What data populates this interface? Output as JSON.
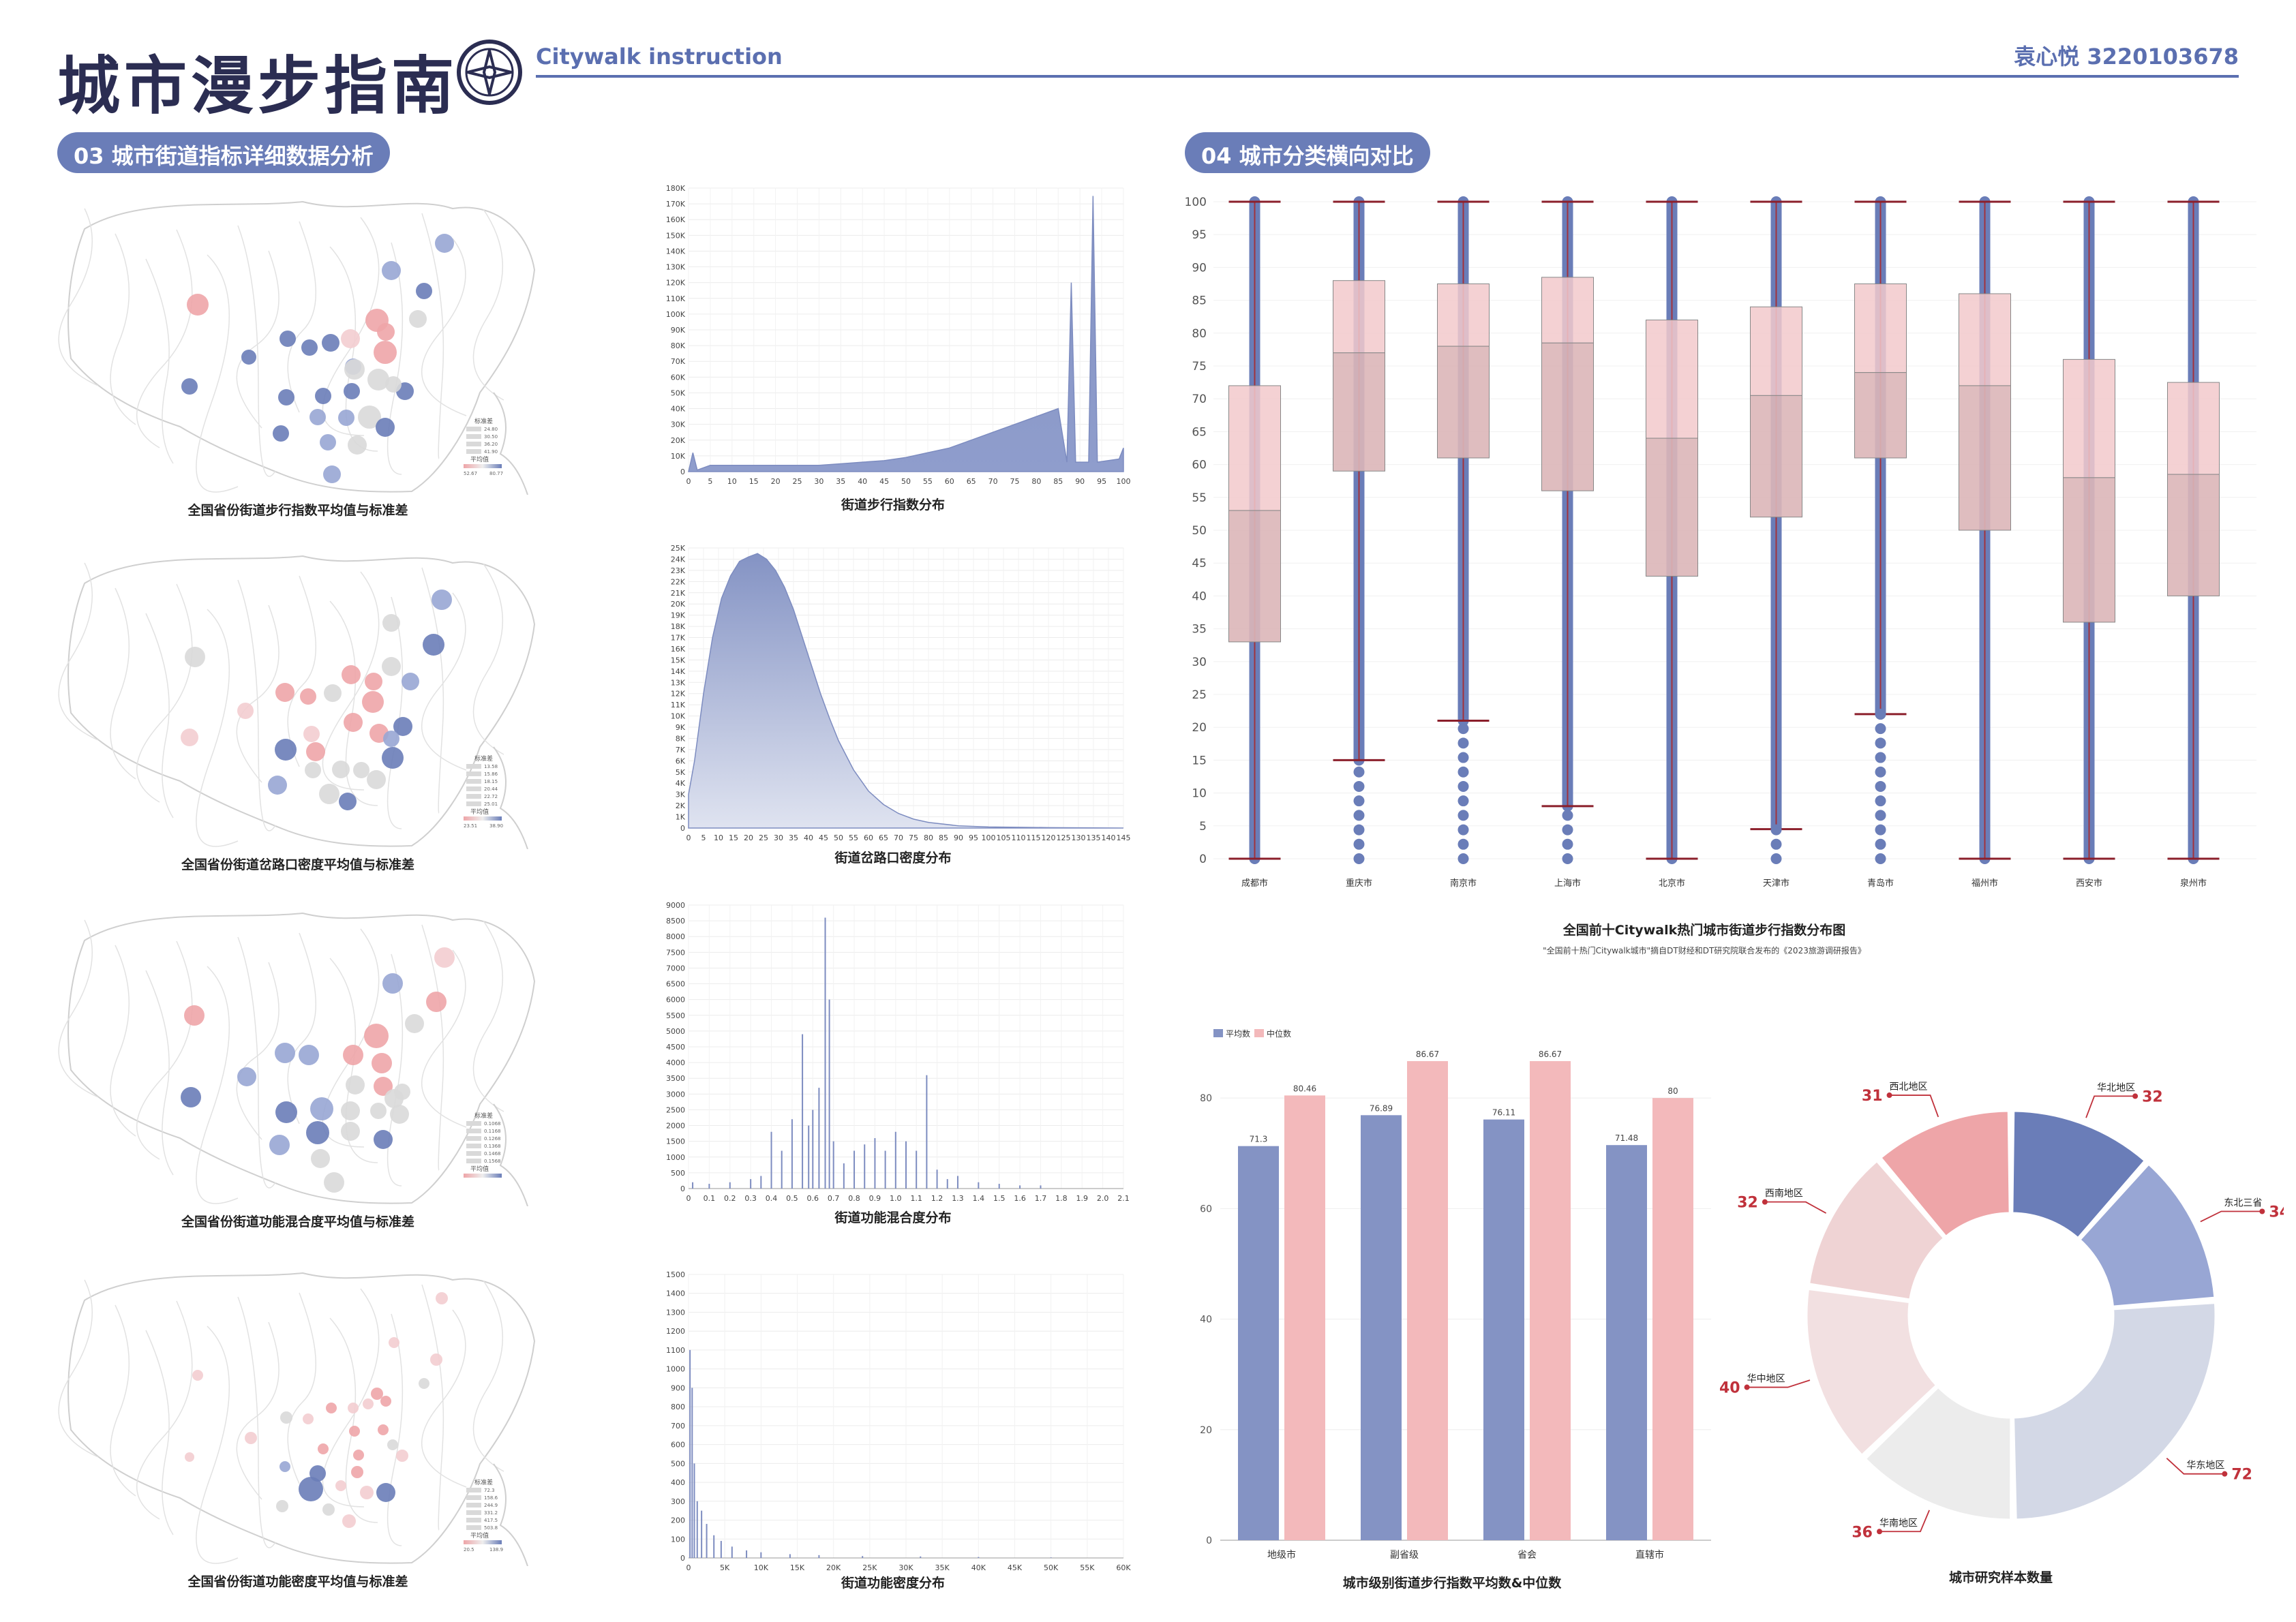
{
  "header": {
    "title": "城市漫步指南",
    "subtitle": "Citywalk instruction",
    "author": "袁心悦 3220103678"
  },
  "colors": {
    "accent": "#5b6fb0",
    "blue": "#6a7db8",
    "pink": "#eea5a8",
    "grey": "#d9d9d9"
  },
  "sections": {
    "s03": "03 城市街道指标详细数据分析",
    "s04": "04 城市分类横向对比"
  },
  "maps": [
    {
      "caption": "全国省份街道步行指数平均值与标准差",
      "legend_std": "标准差",
      "legend_std_vals": [
        "24.80",
        "30.50",
        "36.20",
        "41.90"
      ],
      "legend_mean": "平均值",
      "legend_min": "52.67",
      "legend_max": "80.77"
    },
    {
      "caption": "全国省份街道岔路口密度平均值与标准差",
      "legend_std": "标准差",
      "legend_std_vals": [
        "13.58",
        "15.86",
        "18.15",
        "20.44",
        "22.72",
        "25.01"
      ],
      "legend_mean": "平均值",
      "legend_min": "23.51",
      "legend_max": "38.90"
    },
    {
      "caption": "全国省份街道功能混合度平均值与标准差",
      "legend_std": "标准差",
      "legend_std_vals": [
        "0.1068",
        "0.1168",
        "0.1268",
        "0.1368",
        "0.1468",
        "0.1568"
      ],
      "legend_mean": "平均值",
      "legend_min": "",
      "legend_max": ""
    },
    {
      "caption": "全国省份街道功能密度平均值与标准差",
      "legend_std": "标准差",
      "legend_std_vals": [
        "72.3",
        "158.6",
        "244.9",
        "331.2",
        "417.5",
        "503.8"
      ],
      "legend_mean": "平均值",
      "legend_min": "20.5",
      "legend_max": "138.9"
    }
  ],
  "distributions": {
    "walk": {
      "caption": "街道步行指数分布",
      "type": "area",
      "ylabels": [
        "0",
        "10K",
        "20K",
        "30K",
        "40K",
        "50K",
        "60K",
        "70K",
        "80K",
        "90K",
        "100K",
        "110K",
        "120K",
        "130K",
        "140K",
        "150K",
        "160K",
        "170K",
        "180K"
      ],
      "xlabels": [
        "0",
        "5",
        "10",
        "15",
        "20",
        "25",
        "30",
        "35",
        "40",
        "45",
        "50",
        "55",
        "60",
        "65",
        "70",
        "75",
        "80",
        "85",
        "90",
        "95",
        "100"
      ],
      "xmax": 100,
      "ymax": 180000,
      "points": [
        [
          0,
          0
        ],
        [
          1,
          12000
        ],
        [
          2,
          1000
        ],
        [
          5,
          4000
        ],
        [
          10,
          4000
        ],
        [
          15,
          4000
        ],
        [
          20,
          4000
        ],
        [
          25,
          4000
        ],
        [
          30,
          4000
        ],
        [
          35,
          5000
        ],
        [
          40,
          6000
        ],
        [
          45,
          7000
        ],
        [
          50,
          9000
        ],
        [
          55,
          12000
        ],
        [
          60,
          15000
        ],
        [
          65,
          20000
        ],
        [
          70,
          25000
        ],
        [
          75,
          30000
        ],
        [
          80,
          35000
        ],
        [
          85,
          40000
        ],
        [
          87,
          6000
        ],
        [
          88,
          120000
        ],
        [
          89,
          6000
        ],
        [
          92,
          6000
        ],
        [
          93,
          175000
        ],
        [
          94,
          6000
        ],
        [
          99,
          8000
        ],
        [
          100,
          15000
        ]
      ]
    },
    "cross": {
      "caption": "街道岔路口密度分布",
      "type": "area",
      "ylabels": [
        "0",
        "1K",
        "2K",
        "3K",
        "4K",
        "5K",
        "6K",
        "7K",
        "8K",
        "9K",
        "10K",
        "11K",
        "12K",
        "13K",
        "14K",
        "15K",
        "16K",
        "17K",
        "18K",
        "19K",
        "20K",
        "21K",
        "22K",
        "23K",
        "24K",
        "25K"
      ],
      "xlabels": [
        "0",
        "5",
        "10",
        "15",
        "20",
        "25",
        "30",
        "35",
        "40",
        "45",
        "50",
        "55",
        "60",
        "65",
        "70",
        "75",
        "80",
        "85",
        "90",
        "95",
        "100",
        "105",
        "110",
        "115",
        "120",
        "125",
        "130",
        "135",
        "140",
        "145"
      ],
      "xmax": 145,
      "ymax": 25000,
      "points": [
        [
          0,
          3000
        ],
        [
          2,
          6000
        ],
        [
          5,
          12000
        ],
        [
          8,
          17000
        ],
        [
          11,
          20500
        ],
        [
          14,
          22500
        ],
        [
          17,
          23800
        ],
        [
          20,
          24200
        ],
        [
          23,
          24500
        ],
        [
          26,
          24000
        ],
        [
          29,
          23000
        ],
        [
          32,
          21500
        ],
        [
          35,
          19500
        ],
        [
          38,
          17000
        ],
        [
          41,
          14500
        ],
        [
          44,
          12000
        ],
        [
          47,
          9800
        ],
        [
          50,
          7800
        ],
        [
          55,
          5200
        ],
        [
          60,
          3300
        ],
        [
          65,
          2100
        ],
        [
          70,
          1300
        ],
        [
          75,
          800
        ],
        [
          80,
          500
        ],
        [
          90,
          200
        ],
        [
          100,
          100
        ],
        [
          120,
          40
        ],
        [
          145,
          0
        ]
      ]
    },
    "mix": {
      "caption": "街道功能混合度分布",
      "type": "spikes",
      "ylabels": [
        "0",
        "500",
        "1000",
        "1500",
        "2000",
        "2500",
        "3000",
        "3500",
        "4000",
        "4500",
        "5000",
        "5500",
        "6000",
        "6500",
        "7000",
        "7500",
        "8000",
        "8500",
        "9000"
      ],
      "xlabels": [
        "0",
        "0.1",
        "0.2",
        "0.3",
        "0.4",
        "0.5",
        "0.6",
        "0.7",
        "0.8",
        "0.9",
        "1.0",
        "1.1",
        "1.2",
        "1.3",
        "1.4",
        "1.5",
        "1.6",
        "1.7",
        "1.8",
        "1.9",
        "2.0",
        "2.1"
      ],
      "xmax": 2.1,
      "ymax": 9000,
      "points": [
        [
          0.02,
          200
        ],
        [
          0.1,
          150
        ],
        [
          0.2,
          200
        ],
        [
          0.3,
          300
        ],
        [
          0.35,
          400
        ],
        [
          0.4,
          1800
        ],
        [
          0.45,
          1200
        ],
        [
          0.5,
          2200
        ],
        [
          0.55,
          4900
        ],
        [
          0.58,
          2000
        ],
        [
          0.6,
          2500
        ],
        [
          0.63,
          3200
        ],
        [
          0.66,
          8600
        ],
        [
          0.68,
          6000
        ],
        [
          0.7,
          1500
        ],
        [
          0.75,
          800
        ],
        [
          0.8,
          1200
        ],
        [
          0.85,
          1400
        ],
        [
          0.9,
          1600
        ],
        [
          0.95,
          1200
        ],
        [
          1.0,
          1800
        ],
        [
          1.05,
          1500
        ],
        [
          1.1,
          1200
        ],
        [
          1.15,
          3600
        ],
        [
          1.2,
          600
        ],
        [
          1.25,
          300
        ],
        [
          1.3,
          400
        ],
        [
          1.4,
          200
        ],
        [
          1.5,
          150
        ],
        [
          1.6,
          100
        ],
        [
          1.7,
          100
        ]
      ]
    },
    "density": {
      "caption": "街道功能密度分布",
      "type": "spikes",
      "ylabels": [
        "0",
        "100",
        "200",
        "300",
        "400",
        "500",
        "600",
        "700",
        "800",
        "900",
        "1000",
        "1100",
        "1200",
        "1300",
        "1400",
        "1500"
      ],
      "xlabels": [
        "0",
        "5K",
        "10K",
        "15K",
        "20K",
        "25K",
        "30K",
        "35K",
        "40K",
        "45K",
        "50K",
        "55K",
        "60K"
      ],
      "xmax": 60000,
      "ymax": 1500,
      "points": [
        [
          200,
          1100
        ],
        [
          500,
          900
        ],
        [
          800,
          500
        ],
        [
          1200,
          300
        ],
        [
          1800,
          250
        ],
        [
          2500,
          180
        ],
        [
          3500,
          120
        ],
        [
          4500,
          90
        ],
        [
          6000,
          60
        ],
        [
          8000,
          40
        ],
        [
          10000,
          30
        ],
        [
          14000,
          20
        ],
        [
          18000,
          15
        ],
        [
          24000,
          10
        ],
        [
          32000,
          8
        ],
        [
          40000,
          5
        ],
        [
          50000,
          3
        ]
      ]
    }
  },
  "chart_data": [
    {
      "type": "box",
      "title": "全国前十Citywalk热门城市街道步行指数分布图",
      "note": "\"全国前十热门Citywalk城市\"摘自DT财经和DT研究院联合发布的《2023旅游调研报告》",
      "ylim": [
        0,
        100
      ],
      "yticks": [
        "0",
        "5",
        "10",
        "15",
        "20",
        "25",
        "30",
        "35",
        "40",
        "45",
        "50",
        "55",
        "60",
        "65",
        "70",
        "75",
        "80",
        "85",
        "90",
        "95",
        "100"
      ],
      "cities": [
        {
          "name": "成都市",
          "min": 0,
          "q1": 33,
          "median": 53,
          "q3": 72,
          "max": 100
        },
        {
          "name": "重庆市",
          "min": 15,
          "q1": 59,
          "median": 77,
          "q3": 88,
          "max": 100
        },
        {
          "name": "南京市",
          "min": 21,
          "q1": 61,
          "median": 78,
          "q3": 87.5,
          "max": 100
        },
        {
          "name": "上海市",
          "min": 8,
          "q1": 56,
          "median": 78.5,
          "q3": 88.5,
          "max": 100
        },
        {
          "name": "北京市",
          "min": 0,
          "q1": 43,
          "median": 64,
          "q3": 82,
          "max": 100
        },
        {
          "name": "天津市",
          "min": 4.5,
          "q1": 52,
          "median": 70.5,
          "q3": 84,
          "max": 100
        },
        {
          "name": "青岛市",
          "min": 22,
          "q1": 61,
          "median": 74,
          "q3": 87.5,
          "max": 100
        },
        {
          "name": "福州市",
          "min": 0,
          "q1": 50,
          "median": 72,
          "q3": 86,
          "max": 100
        },
        {
          "name": "西安市",
          "min": 0,
          "q1": 36,
          "median": 58,
          "q3": 76,
          "max": 100
        },
        {
          "name": "泉州市",
          "min": 0,
          "q1": 40,
          "median": 58.5,
          "q3": 72.5,
          "max": 100
        }
      ]
    },
    {
      "type": "bar",
      "title": "城市级别街道步行指数平均数&中位数",
      "categories": [
        "地级市",
        "副省级",
        "省会",
        "直辖市"
      ],
      "ylim": [
        0,
        90
      ],
      "yticks": [
        "0",
        "20",
        "40",
        "60",
        "80"
      ],
      "series": [
        {
          "name": "平均数",
          "values": [
            71.3,
            76.89,
            76.11,
            71.48
          ]
        },
        {
          "name": "中位数",
          "values": [
            80.46,
            86.67,
            86.67,
            80
          ]
        }
      ],
      "value_labels": [
        [
          "71.3",
          "76.89",
          "76.11",
          "71.48"
        ],
        [
          "80.46",
          "86.67",
          "86.67",
          "80"
        ]
      ]
    },
    {
      "type": "pie",
      "title": "城市研究样本数量",
      "slices": [
        {
          "label": "华北地区",
          "value": 32,
          "color": "#6a7db8"
        },
        {
          "label": "东北三省",
          "value": 34,
          "color": "#98a6d4"
        },
        {
          "label": "华东地区",
          "value": 72,
          "color": "#d3d8e6"
        },
        {
          "label": "华南地区",
          "value": 36,
          "color": "#ececec"
        },
        {
          "label": "华中地区",
          "value": 40,
          "color": "#f2e0e1"
        },
        {
          "label": "西南地区",
          "value": 32,
          "color": "#efd3d4"
        },
        {
          "label": "西北地区",
          "value": 31,
          "color": "#eea5a8"
        }
      ]
    }
  ]
}
